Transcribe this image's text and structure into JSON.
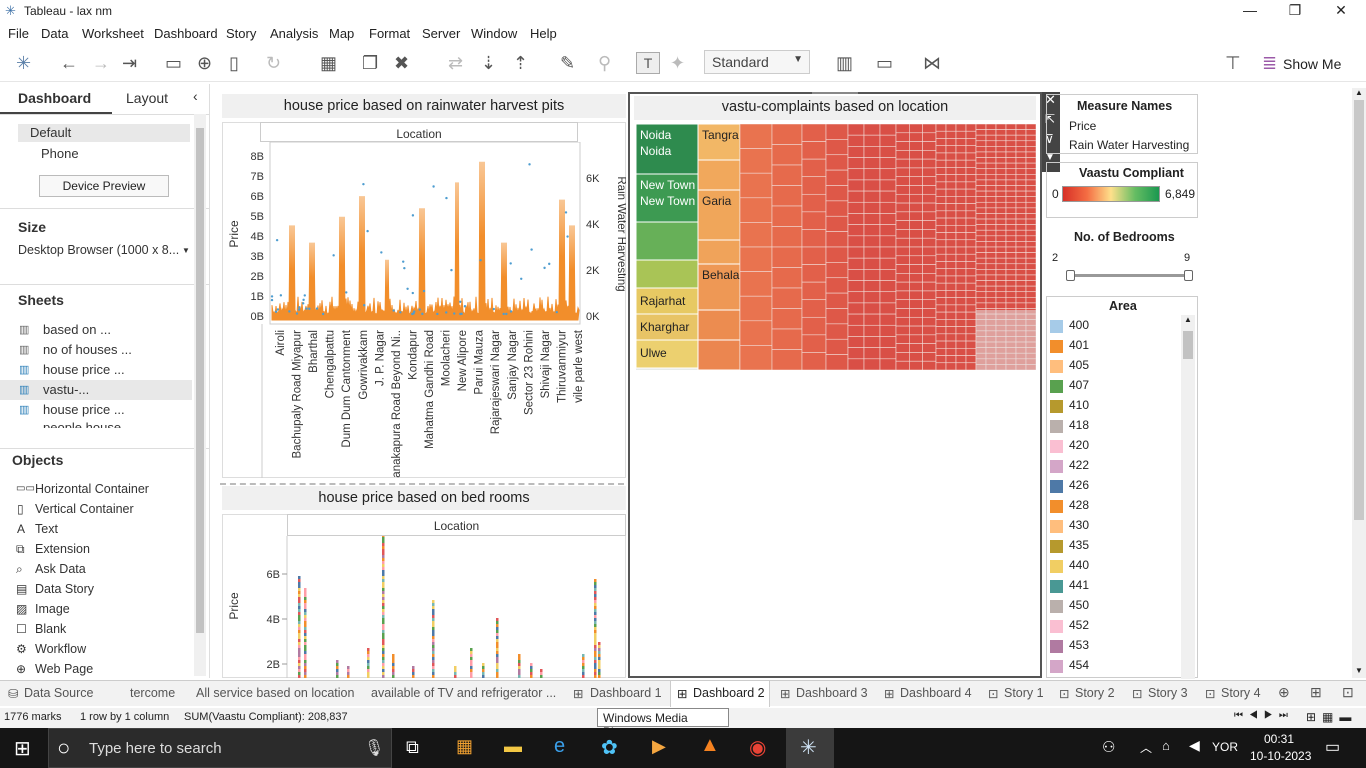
{
  "window": {
    "title": "Tableau - lax nm",
    "minimize": "—",
    "restore": "❐",
    "close": "✕"
  },
  "menu": [
    "File",
    "Data",
    "Worksheet",
    "Dashboard",
    "Story",
    "Analysis",
    "Map",
    "Format",
    "Server",
    "Window",
    "Help"
  ],
  "toolbar": {
    "view_mode": "Standard",
    "show_me": "Show Me"
  },
  "left": {
    "tab_dashboard": "Dashboard",
    "tab_layout": "Layout",
    "devices": [
      "Default",
      "Phone"
    ],
    "device_preview": "Device Preview",
    "size_label": "Size",
    "size_value": "Desktop Browser (1000 x 8...",
    "sheets_label": "Sheets",
    "sheets": [
      "based on ...",
      "no of houses ...",
      "house price ...",
      "vastu-...",
      "house price ...",
      "people house..."
    ],
    "objects_label": "Objects",
    "objects": [
      "Horizontal Container",
      "Vertical Container",
      "Text",
      "Extension",
      "Ask Data",
      "Data Story",
      "Image",
      "Blank",
      "Workflow",
      "Web Page"
    ]
  },
  "chart1": {
    "title": "house price based on rainwater harvest pits",
    "col_header": "Location",
    "ylabel_left": "Price",
    "ylabel_right": "Rain Water Harvesting",
    "yticks_left": [
      "8B",
      "7B",
      "6B",
      "5B",
      "4B",
      "3B",
      "2B",
      "1B",
      "0B"
    ],
    "yticks_right": [
      "6K",
      "4K",
      "2K",
      "0K"
    ],
    "locations": [
      "Airoli",
      "Bachupaly Road Miyapur",
      "Bharthal",
      "Chengalpattu",
      "Dum Dum Cantonment",
      "Gowrivakkam",
      "J. P. Nagar",
      "Kanakapura Road Beyond Ni..",
      "Kondapur",
      "Mahatma Gandhi Road",
      "Moolacheri",
      "New Alipore",
      "Parui Mauza",
      "Rajarajeswari Nagar",
      "Sanjay Nagar",
      "Sector 23 Rohini",
      "Shivaji Nagar",
      "Thiruvanmiyur",
      "vile parle west"
    ]
  },
  "chart2": {
    "title": "house price based on bed rooms",
    "col_header": "Location",
    "ylabel": "Price",
    "yticks": [
      "6B",
      "4B",
      "2B"
    ]
  },
  "chart3": {
    "title": "vastu-complaints based on location",
    "labels": [
      "Noida Noida",
      "New Town New Town",
      "Rajarhat",
      "Kharghar",
      "Ulwe",
      "Tangra",
      "Garia",
      "Behala"
    ]
  },
  "legend": {
    "measure_title": "Measure Names",
    "measures": [
      "Price",
      "Rain Water Harvesting"
    ],
    "vastu_title": "Vaastu Compliant",
    "vastu_min": "0",
    "vastu_max": "6,849",
    "bedrooms_title": "No. of Bedrooms",
    "bed_min": "2",
    "bed_max": "9",
    "area_title": "Area",
    "areas": [
      {
        "v": "400",
        "c": "#a6cbe8"
      },
      {
        "v": "401",
        "c": "#f28e2b"
      },
      {
        "v": "405",
        "c": "#ffbe7d"
      },
      {
        "v": "407",
        "c": "#59a14f"
      },
      {
        "v": "410",
        "c": "#b6992d"
      },
      {
        "v": "418",
        "c": "#bab0ac"
      },
      {
        "v": "420",
        "c": "#fabfd2"
      },
      {
        "v": "422",
        "c": "#d4a6c8"
      },
      {
        "v": "426",
        "c": "#4e79a7"
      },
      {
        "v": "428",
        "c": "#f28e2b"
      },
      {
        "v": "430",
        "c": "#ffbe7d"
      },
      {
        "v": "435",
        "c": "#b6992d"
      },
      {
        "v": "440",
        "c": "#f1ce63"
      },
      {
        "v": "441",
        "c": "#499894"
      },
      {
        "v": "450",
        "c": "#bab0ac"
      },
      {
        "v": "452",
        "c": "#fabfd2"
      },
      {
        "v": "453",
        "c": "#b07aa1"
      },
      {
        "v": "454",
        "c": "#d4a6c8"
      }
    ]
  },
  "tabs": [
    "Data Source",
    "tercome",
    "All service based on location",
    "available of TV and refrigerator ...",
    "Dashboard 1",
    "Dashboard 2",
    "Dashboard 3",
    "Dashboard 4",
    "Story 1",
    "Story 2",
    "Story 3",
    "Story 4"
  ],
  "status": {
    "marks": "1776 marks",
    "rows": "1 row by 1 column",
    "sum": "SUM(Vaastu Compliant): 208,837",
    "tooltip": "Windows Media Player"
  },
  "taskbar": {
    "search": "Type here to search",
    "lang": "YOR",
    "time": "00:31",
    "date": "10-10-2023"
  }
}
